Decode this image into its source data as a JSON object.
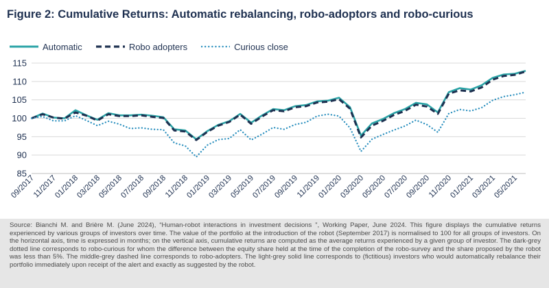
{
  "title": "Figure 2: Cumulative Returns: Automatic rebalancing, robo-adoptors and robo-curious",
  "colors": {
    "automatic": "#2aa3a6",
    "robo_adopters": "#1e3050",
    "curious_close": "#2a8fbe",
    "text": "#1e3050",
    "grid": "#d9d9d9"
  },
  "chart_data": {
    "type": "line",
    "title": "Figure 2: Cumulative Returns: Automatic rebalancing, robo-adoptors and robo-curious",
    "xlabel": "",
    "ylabel": "",
    "ylim": [
      85,
      115
    ],
    "yticks": [
      85,
      90,
      95,
      100,
      105,
      110,
      115
    ],
    "grid": "horizontal",
    "legend_position": "top-left",
    "x": [
      "09/2017",
      "10/2017",
      "11/2017",
      "12/2017",
      "01/2018",
      "02/2018",
      "03/2018",
      "04/2018",
      "05/2018",
      "06/2018",
      "07/2018",
      "08/2018",
      "09/2018",
      "10/2018",
      "11/2018",
      "12/2018",
      "01/2019",
      "02/2019",
      "03/2019",
      "04/2019",
      "05/2019",
      "06/2019",
      "07/2019",
      "08/2019",
      "09/2019",
      "10/2019",
      "11/2019",
      "12/2019",
      "01/2020",
      "02/2020",
      "03/2020",
      "04/2020",
      "05/2020",
      "06/2020",
      "07/2020",
      "08/2020",
      "09/2020",
      "10/2020",
      "11/2020",
      "12/2020",
      "01/2021",
      "02/2021",
      "03/2021",
      "04/2021",
      "05/2021",
      "06/2021"
    ],
    "x_tick_labels": [
      "09/2017",
      "11/2017",
      "01/2018",
      "03/2018",
      "05/2018",
      "07/2018",
      "09/2018",
      "11/2018",
      "01/2019",
      "03/2019",
      "05/2019",
      "07/2019",
      "09/2019",
      "11/2019",
      "01/2020",
      "03/2020",
      "05/2020",
      "07/2020",
      "09/2020",
      "11/2020",
      "01/2021",
      "03/2021",
      "05/2021"
    ],
    "series": [
      {
        "name": "Automatic",
        "style": "solid",
        "values": [
          100,
          101.3,
          100.2,
          100.0,
          102.2,
          100.8,
          99.6,
          101.4,
          100.8,
          100.8,
          101.0,
          100.7,
          100.3,
          97.0,
          96.7,
          94.3,
          96.5,
          98.2,
          99.2,
          101.2,
          98.8,
          100.8,
          102.5,
          102.2,
          103.3,
          103.6,
          104.6,
          104.8,
          105.6,
          103.0,
          95.3,
          98.6,
          99.8,
          101.4,
          102.5,
          104.2,
          103.8,
          101.6,
          107.1,
          108.2,
          107.8,
          109.0,
          111.0,
          111.9,
          112.1,
          112.9
        ]
      },
      {
        "name": "Robo adopters",
        "style": "dashed",
        "values": [
          100,
          101.1,
          100.2,
          99.9,
          101.6,
          100.7,
          99.4,
          101.1,
          100.6,
          100.6,
          100.8,
          100.4,
          100.1,
          96.7,
          96.4,
          94.1,
          96.3,
          98.0,
          99.0,
          101.0,
          98.5,
          100.5,
          102.2,
          101.9,
          103.0,
          103.3,
          104.3,
          104.5,
          105.2,
          102.6,
          94.8,
          98.0,
          99.3,
          100.9,
          102.0,
          103.7,
          103.2,
          101.2,
          106.7,
          107.6,
          107.3,
          108.4,
          110.5,
          111.5,
          111.8,
          112.7
        ]
      },
      {
        "name": "Curious close",
        "style": "dotted",
        "values": [
          100,
          100.5,
          99.3,
          99.3,
          100.7,
          99.4,
          98.0,
          99.2,
          98.4,
          97.2,
          97.4,
          97.0,
          96.9,
          93.3,
          92.5,
          89.5,
          92.7,
          94.2,
          94.5,
          96.9,
          94.1,
          95.7,
          97.5,
          97.0,
          98.3,
          98.9,
          100.6,
          101.1,
          100.6,
          97.4,
          91.0,
          94.3,
          95.6,
          96.8,
          97.9,
          99.5,
          98.3,
          96.2,
          101.3,
          102.4,
          102.0,
          102.9,
          104.9,
          105.9,
          106.4,
          107.1
        ]
      }
    ]
  },
  "source": "Source: Bianchi M. and Brière M. (June 2024), “Human-robot interactions in investment decisions ”, Working Paper, June 2024. This figure displays the cumulative returns experienced by various groups of investors over time. The value of the portfolio at the introduction of the robot (September 2017) is normalised to 100 for all groups of investors. On the horizontal axis, time is expressed in months; on the vertical axis, cumulative returns are computed as the average returns experienced by a given group of investor. The dark-grey dotted line corresponds to robo-curious for whom the difference between the equity share held at the time of the completion of the robo-survey and the share proposed by the robot was less than 5%. The middle-grey dashed line corresponds to robo-adopters. The light-grey solid line corresponds to (fictitious) investors who would automatically rebalance their portfolio immediately upon receipt of the alert and exactly as suggested by the robot."
}
